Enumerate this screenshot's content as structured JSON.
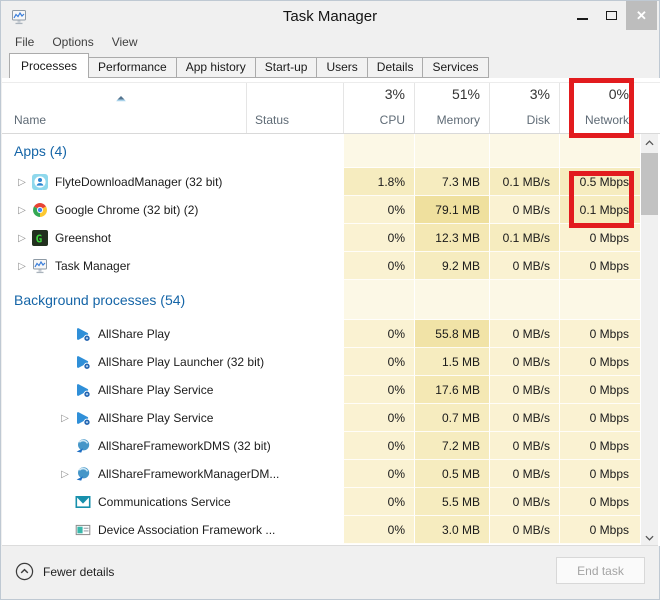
{
  "window": {
    "title": "Task Manager"
  },
  "menu": {
    "items": [
      "File",
      "Options",
      "View"
    ]
  },
  "tabs": {
    "active_index": 0,
    "items": [
      "Processes",
      "Performance",
      "App history",
      "Start-up",
      "Users",
      "Details",
      "Services"
    ]
  },
  "table": {
    "columns": {
      "name": {
        "label": "Name"
      },
      "status": {
        "label": "Status"
      },
      "cpu": {
        "label": "CPU",
        "value": "3%"
      },
      "memory": {
        "label": "Memory",
        "value": "51%"
      },
      "disk": {
        "label": "Disk",
        "value": "3%"
      },
      "network": {
        "label": "Network",
        "value": "0%"
      }
    },
    "sort": {
      "column": "name",
      "direction": "ascending"
    },
    "sections": [
      {
        "label": "Apps (4)",
        "rows": [
          {
            "name": "FlyteDownloadManager (32 bit)",
            "icon": "flyte-icon",
            "expandable": true,
            "indent": "app",
            "cpu": "1.8%",
            "memory": "7.3 MB",
            "disk": "0.1 MB/s",
            "network": "0.5 Mbps"
          },
          {
            "name": "Google Chrome (32 bit) (2)",
            "icon": "chrome-icon",
            "expandable": true,
            "indent": "app",
            "cpu": "0%",
            "memory": "79.1 MB",
            "disk": "0 MB/s",
            "network": "0.1 Mbps"
          },
          {
            "name": "Greenshot",
            "icon": "greenshot-icon",
            "expandable": true,
            "indent": "app",
            "cpu": "0%",
            "memory": "12.3 MB",
            "disk": "0.1 MB/s",
            "network": "0 Mbps"
          },
          {
            "name": "Task Manager",
            "icon": "taskmanager-icon",
            "expandable": true,
            "indent": "app",
            "cpu": "0%",
            "memory": "9.2 MB",
            "disk": "0 MB/s",
            "network": "0 Mbps"
          }
        ]
      },
      {
        "label": "Background processes (54)",
        "rows": [
          {
            "name": "AllShare Play",
            "icon": "allshare-play-icon",
            "expandable": false,
            "indent": "bg",
            "cpu": "0%",
            "memory": "55.8 MB",
            "disk": "0 MB/s",
            "network": "0 Mbps"
          },
          {
            "name": "AllShare Play Launcher (32 bit)",
            "icon": "allshare-play-icon",
            "expandable": false,
            "indent": "bg",
            "cpu": "0%",
            "memory": "1.5 MB",
            "disk": "0 MB/s",
            "network": "0 Mbps"
          },
          {
            "name": "AllShare Play Service",
            "icon": "allshare-play-icon",
            "expandable": false,
            "indent": "bg",
            "cpu": "0%",
            "memory": "17.6 MB",
            "disk": "0 MB/s",
            "network": "0 Mbps"
          },
          {
            "name": "AllShare Play Service",
            "icon": "allshare-play-icon",
            "expandable": true,
            "indent": "bg",
            "cpu": "0%",
            "memory": "0.7 MB",
            "disk": "0 MB/s",
            "network": "0 Mbps"
          },
          {
            "name": "AllShareFrameworkDMS (32 bit)",
            "icon": "framework-globe-icon",
            "expandable": false,
            "indent": "bg",
            "cpu": "0%",
            "memory": "7.2 MB",
            "disk": "0 MB/s",
            "network": "0 Mbps"
          },
          {
            "name": "AllShareFrameworkManagerDM...",
            "icon": "framework-globe-icon",
            "expandable": true,
            "indent": "bg",
            "cpu": "0%",
            "memory": "0.5 MB",
            "disk": "0 MB/s",
            "network": "0 Mbps"
          },
          {
            "name": "Communications Service",
            "icon": "mail-icon",
            "expandable": false,
            "indent": "bg",
            "cpu": "0%",
            "memory": "5.5 MB",
            "disk": "0 MB/s",
            "network": "0 Mbps"
          },
          {
            "name": "Device Association Framework ...",
            "icon": "device-card-icon",
            "expandable": false,
            "indent": "bg",
            "cpu": "0%",
            "memory": "3.0 MB",
            "disk": "0 MB/s",
            "network": "0 Mbps"
          }
        ]
      }
    ]
  },
  "footer": {
    "fewer_details": "Fewer details",
    "end_task": "End task"
  },
  "annotations": {
    "highlight_color": "#e21b1e",
    "highlight_boxes": [
      "network-column-header",
      "top-two-network-values"
    ]
  },
  "colors": {
    "section_blue": "#1565a7",
    "heat": {
      "section": "#fcf8e6",
      "l0": "#faf2d2",
      "l2": "#f6ecbf",
      "l3": "#f4e8b4",
      "l4": "#f1e3a7",
      "l5": "#efe09e"
    }
  }
}
